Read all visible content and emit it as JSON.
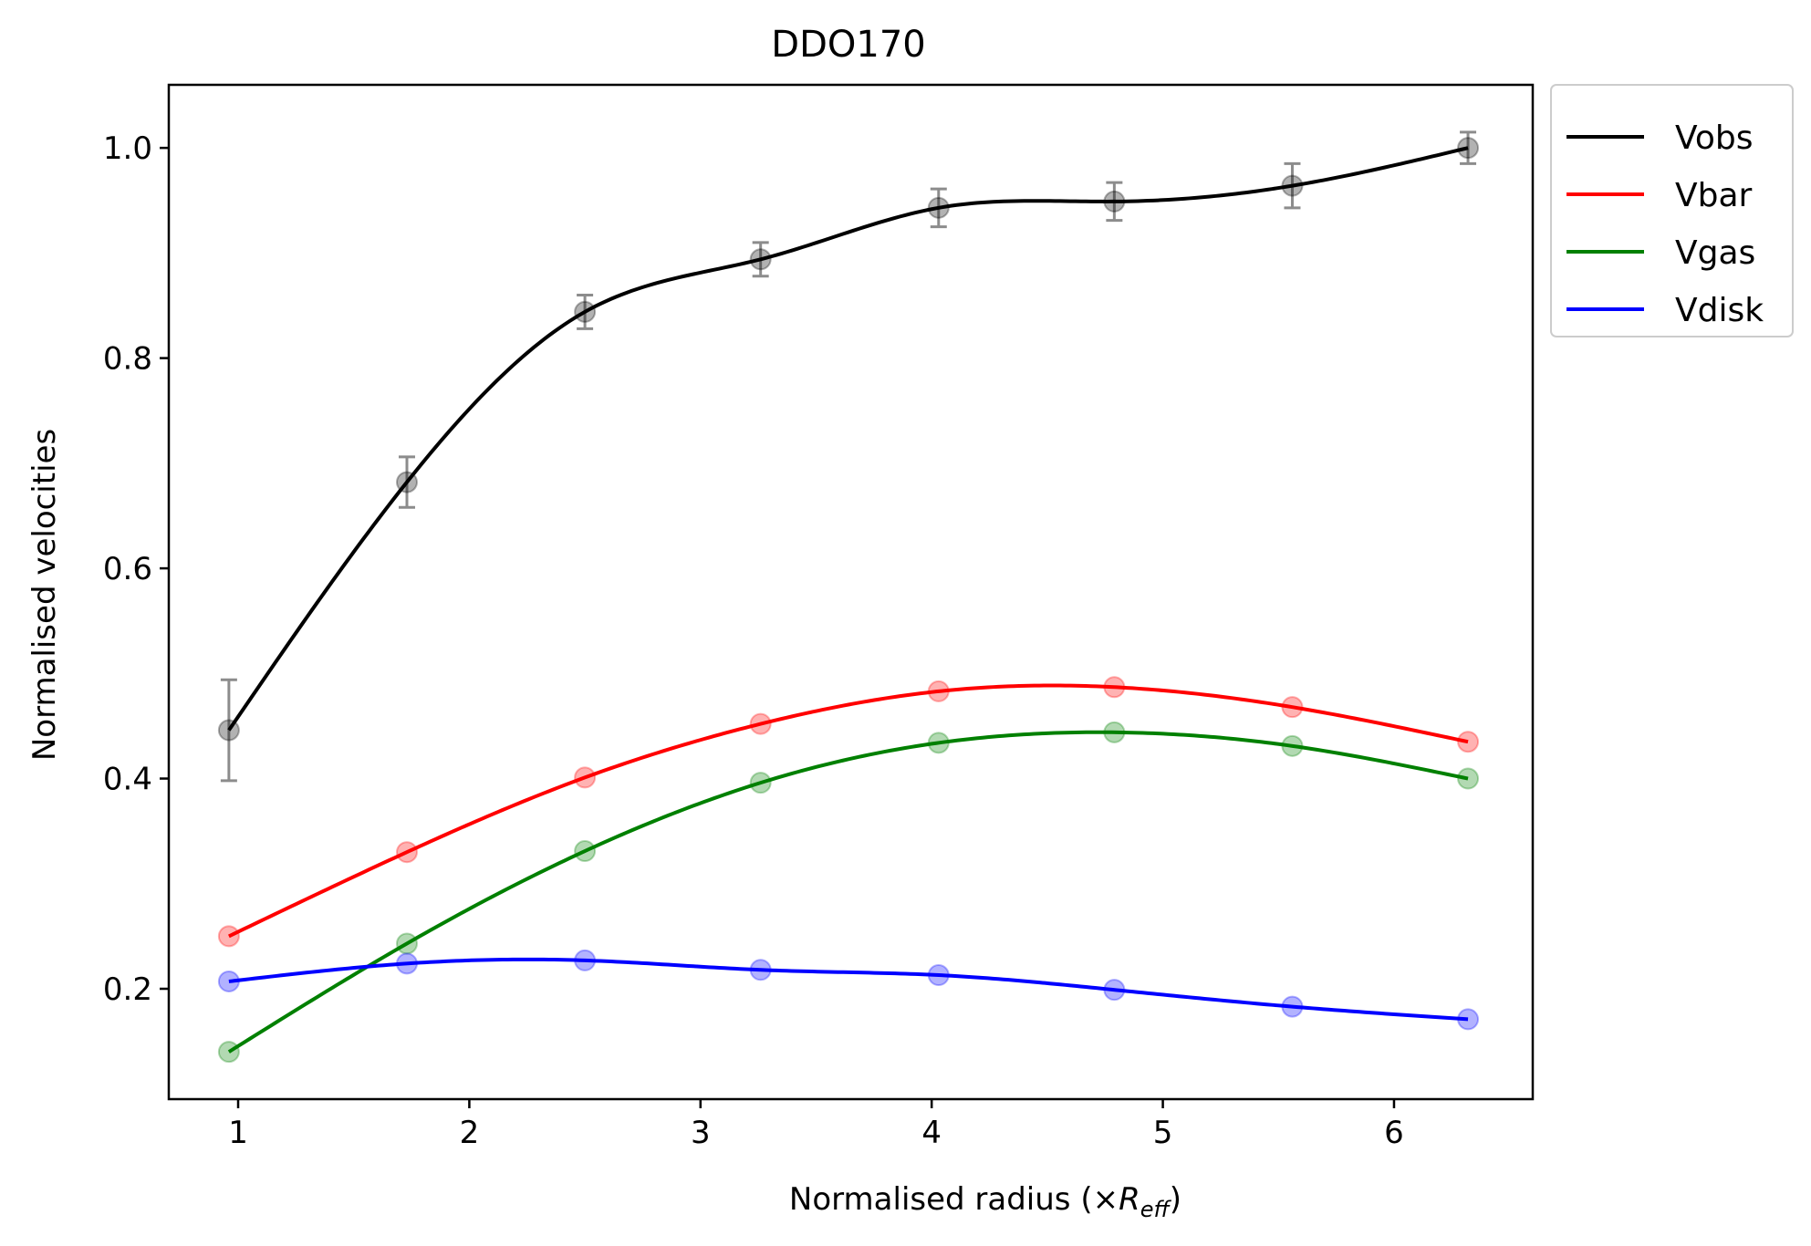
{
  "chart_data": {
    "type": "line",
    "title": "DDO170",
    "xlabel": "Normalised radius (×",
    "xlabel_symbol": "R",
    "xlabel_subscript": "eff",
    "xlabel_suffix": ")",
    "ylabel": "Normalised velocities",
    "xlim": [
      0.7,
      6.6
    ],
    "ylim": [
      0.095,
      1.06
    ],
    "xticks": [
      1,
      2,
      3,
      4,
      5,
      6
    ],
    "xtick_labels": [
      "1",
      "2",
      "3",
      "4",
      "5",
      "6"
    ],
    "yticks": [
      0.2,
      0.4,
      0.6,
      0.8,
      1.0
    ],
    "ytick_labels": [
      "0.2",
      "0.4",
      "0.6",
      "0.8",
      "1.0"
    ],
    "legend_position": "outside-top-right",
    "grid": false,
    "x": [
      0.96,
      1.73,
      2.5,
      3.26,
      4.03,
      4.79,
      5.56,
      6.32
    ],
    "series": [
      {
        "name": "Vobs",
        "color": "#000000",
        "values": [
          0.446,
          0.682,
          0.844,
          0.894,
          0.943,
          0.949,
          0.964,
          1.0
        ],
        "errors": [
          0.048,
          0.024,
          0.016,
          0.016,
          0.018,
          0.018,
          0.021,
          0.015
        ]
      },
      {
        "name": "Vbar",
        "color": "#ff0000",
        "values": [
          0.25,
          0.33,
          0.401,
          0.452,
          0.483,
          0.487,
          0.468,
          0.435
        ]
      },
      {
        "name": "Vgas",
        "color": "#008000",
        "values": [
          0.14,
          0.243,
          0.331,
          0.396,
          0.434,
          0.444,
          0.431,
          0.4
        ]
      },
      {
        "name": "Vdisk",
        "color": "#0000ff",
        "values": [
          0.207,
          0.224,
          0.227,
          0.218,
          0.213,
          0.199,
          0.183,
          0.171
        ]
      }
    ]
  }
}
